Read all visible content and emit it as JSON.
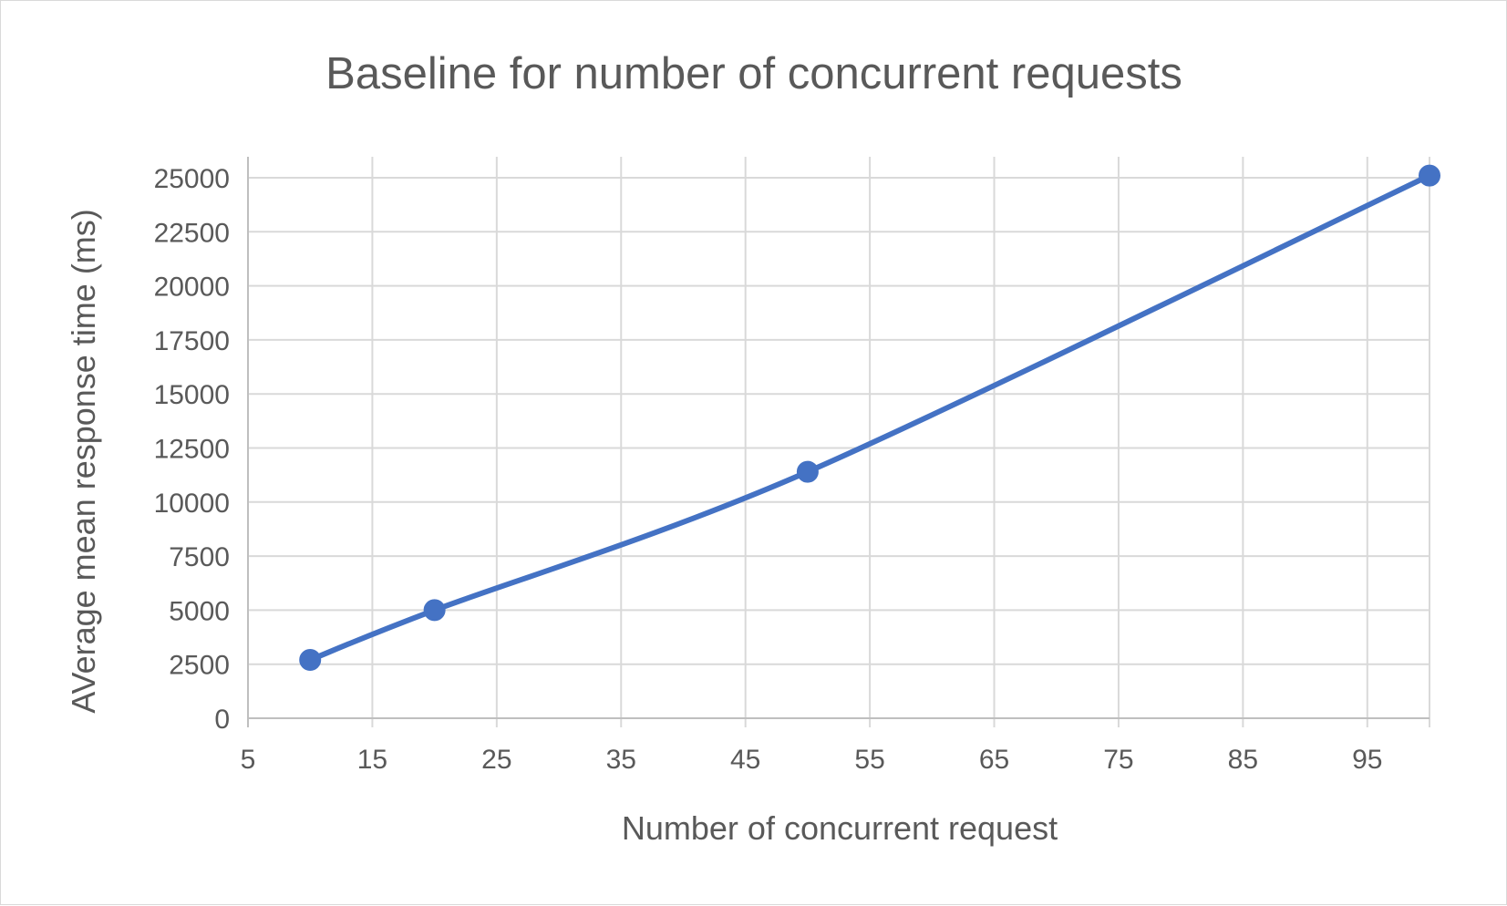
{
  "chart_data": {
    "type": "scatter",
    "title": "Baseline for number of concurrent requests",
    "xlabel": "Number of concurrent request",
    "ylabel": "AVerage mean response time (ms)",
    "xlim": [
      5,
      100
    ],
    "ylim": [
      0,
      25000
    ],
    "x_ticks": [
      5,
      15,
      25,
      35,
      45,
      55,
      65,
      75,
      85,
      95
    ],
    "y_ticks": [
      0,
      2500,
      5000,
      7500,
      10000,
      12500,
      15000,
      17500,
      20000,
      22500,
      25000
    ],
    "grid": true,
    "legend": "none",
    "smooth_line": true,
    "series": [
      {
        "x": [
          10,
          20,
          50,
          100
        ],
        "y": [
          2700,
          5000,
          11400,
          25100
        ],
        "color": "#4472c4"
      }
    ]
  }
}
